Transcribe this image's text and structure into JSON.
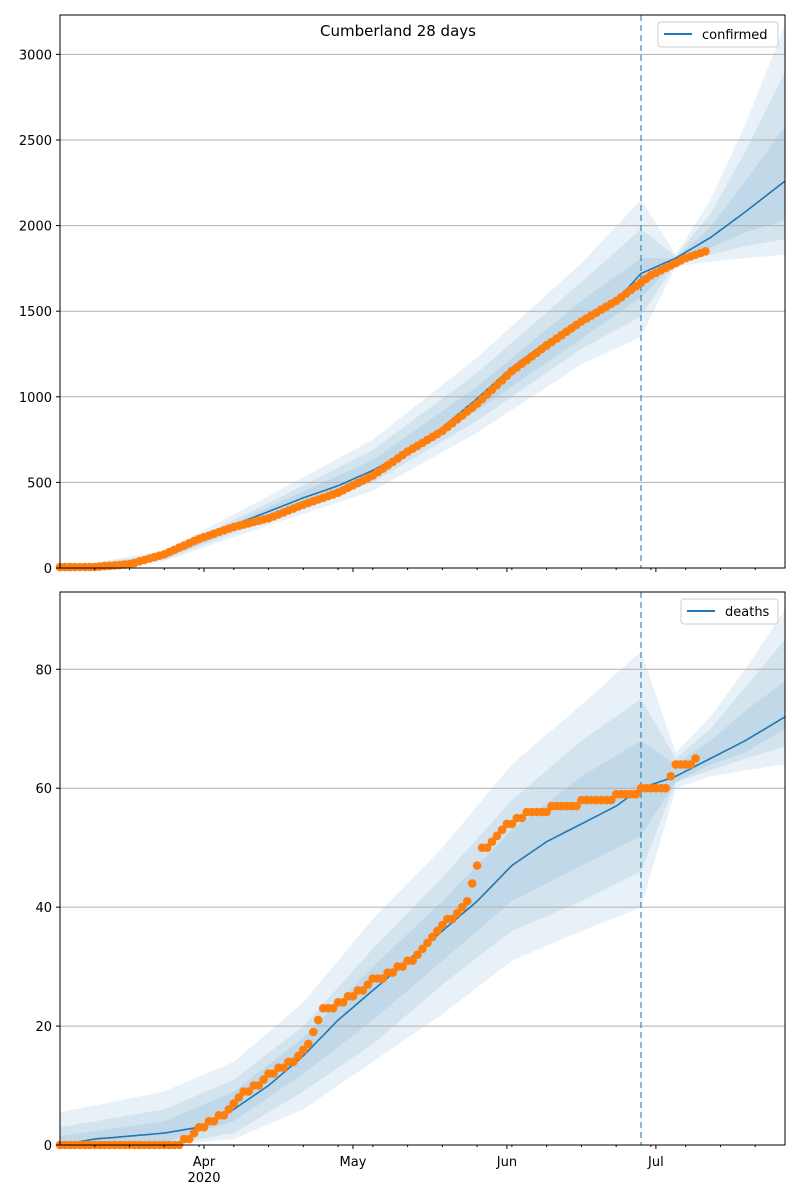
{
  "chart_data": [
    {
      "type": "line",
      "title": "Cumberland 28 days",
      "legend": {
        "entries": [
          "confirmed"
        ],
        "position": "top-right"
      },
      "x_axis": {
        "type": "date",
        "range": [
          "2020-03-03",
          "2020-07-27"
        ]
      },
      "ylim": [
        0,
        3230
      ],
      "yticks": [
        0,
        500,
        1000,
        1500,
        2000,
        2500,
        3000
      ],
      "grid": "y",
      "forecast_start": "2020-06-28",
      "series": [
        {
          "name": "confirmed",
          "role": "model",
          "points": [
            [
              "2020-03-03",
              0
            ],
            [
              "2020-03-10",
              1
            ],
            [
              "2020-03-17",
              10
            ],
            [
              "2020-03-24",
              65
            ],
            [
              "2020-03-31",
              170
            ],
            [
              "2020-04-07",
              250
            ],
            [
              "2020-04-14",
              330
            ],
            [
              "2020-04-21",
              410
            ],
            [
              "2020-04-28",
              480
            ],
            [
              "2020-05-05",
              570
            ],
            [
              "2020-05-12",
              680
            ],
            [
              "2020-05-19",
              820
            ],
            [
              "2020-05-26",
              990
            ],
            [
              "2020-06-02",
              1170
            ],
            [
              "2020-06-09",
              1320
            ],
            [
              "2020-06-16",
              1440
            ],
            [
              "2020-06-23",
              1560
            ],
            [
              "2020-06-28",
              1720
            ],
            [
              "2020-07-05",
              1810
            ],
            [
              "2020-07-12",
              1930
            ],
            [
              "2020-07-19",
              2080
            ],
            [
              "2020-07-27",
              2260
            ]
          ]
        },
        {
          "role": "observed",
          "points": [
            [
              "2020-03-03",
              5
            ],
            [
              "2020-03-10",
              6
            ],
            [
              "2020-03-17",
              22
            ],
            [
              "2020-03-24",
              80
            ],
            [
              "2020-03-31",
              170
            ],
            [
              "2020-04-07",
              240
            ],
            [
              "2020-04-14",
              290
            ],
            [
              "2020-04-21",
              370
            ],
            [
              "2020-04-28",
              440
            ],
            [
              "2020-05-05",
              540
            ],
            [
              "2020-05-12",
              680
            ],
            [
              "2020-05-19",
              800
            ],
            [
              "2020-05-26",
              960
            ],
            [
              "2020-06-02",
              1150
            ],
            [
              "2020-06-09",
              1300
            ],
            [
              "2020-06-16",
              1440
            ],
            [
              "2020-06-23",
              1560
            ],
            [
              "2020-06-30",
              1710
            ],
            [
              "2020-07-07",
              1810
            ],
            [
              "2020-07-11",
              1850
            ]
          ]
        }
      ],
      "bands": [
        {
          "upper": [
            [
              "2020-03-03",
              0
            ],
            [
              "2020-03-24",
              100
            ],
            [
              "2020-04-14",
              420
            ],
            [
              "2020-05-05",
              750
            ],
            [
              "2020-05-26",
              1230
            ],
            [
              "2020-06-16",
              1780
            ],
            [
              "2020-06-28",
              2150
            ],
            [
              "2020-07-05",
              1830
            ],
            [
              "2020-07-12",
              2150
            ],
            [
              "2020-07-19",
              2590
            ],
            [
              "2020-07-27",
              3170
            ]
          ],
          "lower": [
            [
              "2020-03-03",
              0
            ],
            [
              "2020-03-24",
              40
            ],
            [
              "2020-04-14",
              250
            ],
            [
              "2020-05-05",
              450
            ],
            [
              "2020-05-26",
              790
            ],
            [
              "2020-06-16",
              1190
            ],
            [
              "2020-06-28",
              1350
            ],
            [
              "2020-07-05",
              1760
            ],
            [
              "2020-07-12",
              1790
            ],
            [
              "2020-07-19",
              1810
            ],
            [
              "2020-07-27",
              1830
            ]
          ]
        },
        {
          "upper": [
            [
              "2020-03-03",
              0
            ],
            [
              "2020-03-24",
              85
            ],
            [
              "2020-04-14",
              380
            ],
            [
              "2020-05-05",
              690
            ],
            [
              "2020-05-26",
              1140
            ],
            [
              "2020-06-16",
              1670
            ],
            [
              "2020-06-28",
              1980
            ],
            [
              "2020-07-05",
              1820
            ],
            [
              "2020-07-12",
              2070
            ],
            [
              "2020-07-19",
              2430
            ],
            [
              "2020-07-27",
              2900
            ]
          ],
          "lower": [
            [
              "2020-03-03",
              0
            ],
            [
              "2020-03-24",
              48
            ],
            [
              "2020-04-14",
              280
            ],
            [
              "2020-05-05",
              500
            ],
            [
              "2020-05-26",
              860
            ],
            [
              "2020-06-16",
              1280
            ],
            [
              "2020-06-28",
              1470
            ],
            [
              "2020-07-05",
              1780
            ],
            [
              "2020-07-12",
              1830
            ],
            [
              "2020-07-19",
              1880
            ],
            [
              "2020-07-27",
              1920
            ]
          ]
        },
        {
          "upper": [
            [
              "2020-03-03",
              0
            ],
            [
              "2020-03-24",
              72
            ],
            [
              "2020-04-14",
              355
            ],
            [
              "2020-05-05",
              630
            ],
            [
              "2020-05-26",
              1060
            ],
            [
              "2020-06-16",
              1560
            ],
            [
              "2020-06-28",
              1810
            ],
            [
              "2020-07-05",
              1810
            ],
            [
              "2020-07-12",
              1990
            ],
            [
              "2020-07-19",
              2260
            ],
            [
              "2020-07-27",
              2580
            ]
          ],
          "lower": [
            [
              "2020-03-03",
              0
            ],
            [
              "2020-03-24",
              56
            ],
            [
              "2020-04-14",
              305
            ],
            [
              "2020-05-05",
              540
            ],
            [
              "2020-05-26",
              920
            ],
            [
              "2020-06-16",
              1340
            ],
            [
              "2020-06-28",
              1580
            ],
            [
              "2020-07-05",
              1790
            ],
            [
              "2020-07-12",
              1870
            ],
            [
              "2020-07-19",
              1960
            ],
            [
              "2020-07-27",
              2030
            ]
          ]
        }
      ]
    },
    {
      "type": "line",
      "legend": {
        "entries": [
          "deaths"
        ],
        "position": "top-right"
      },
      "x_axis": {
        "type": "date",
        "range": [
          "2020-03-03",
          "2020-07-27"
        ],
        "tick_labels": [
          "Apr\n2020",
          "May",
          "Jun",
          "Jul"
        ]
      },
      "ylim": [
        0,
        93
      ],
      "yticks": [
        0,
        20,
        40,
        60,
        80
      ],
      "grid": "y",
      "forecast_start": "2020-06-28",
      "series": [
        {
          "name": "deaths",
          "role": "model",
          "points": [
            [
              "2020-03-03",
              0
            ],
            [
              "2020-03-10",
              1
            ],
            [
              "2020-03-24",
              2
            ],
            [
              "2020-03-31",
              3
            ],
            [
              "2020-04-07",
              6
            ],
            [
              "2020-04-14",
              10
            ],
            [
              "2020-04-21",
              15
            ],
            [
              "2020-04-28",
              21
            ],
            [
              "2020-05-05",
              26
            ],
            [
              "2020-05-12",
              31
            ],
            [
              "2020-05-19",
              36
            ],
            [
              "2020-05-26",
              41
            ],
            [
              "2020-06-02",
              47
            ],
            [
              "2020-06-09",
              51
            ],
            [
              "2020-06-16",
              54
            ],
            [
              "2020-06-23",
              57
            ],
            [
              "2020-06-28",
              60
            ],
            [
              "2020-07-05",
              62
            ],
            [
              "2020-07-12",
              65
            ],
            [
              "2020-07-19",
              68
            ],
            [
              "2020-07-27",
              72
            ]
          ]
        },
        {
          "role": "observed",
          "points": [
            [
              "2020-03-03",
              0
            ],
            [
              "2020-03-10",
              0
            ],
            [
              "2020-03-17",
              0
            ],
            [
              "2020-03-24",
              0
            ],
            [
              "2020-03-28",
              1
            ],
            [
              "2020-03-31",
              3
            ],
            [
              "2020-04-04",
              5
            ],
            [
              "2020-04-09",
              9
            ],
            [
              "2020-04-14",
              12
            ],
            [
              "2020-04-21",
              16
            ],
            [
              "2020-04-25",
              23
            ],
            [
              "2020-04-30",
              25
            ],
            [
              "2020-05-05",
              28
            ],
            [
              "2020-05-10",
              30
            ],
            [
              "2020-05-15",
              33
            ],
            [
              "2020-05-20",
              38
            ],
            [
              "2020-05-24",
              41
            ],
            [
              "2020-05-27",
              50
            ],
            [
              "2020-06-01",
              54
            ],
            [
              "2020-06-05",
              56
            ],
            [
              "2020-06-10",
              57
            ],
            [
              "2020-06-16",
              58
            ],
            [
              "2020-06-23",
              59
            ],
            [
              "2020-06-28",
              60
            ],
            [
              "2020-07-03",
              60
            ],
            [
              "2020-07-05",
              64
            ],
            [
              "2020-07-09",
              65
            ]
          ]
        }
      ],
      "bands": [
        {
          "upper": [
            [
              "2020-03-03",
              5.5
            ],
            [
              "2020-03-24",
              9
            ],
            [
              "2020-04-07",
              14
            ],
            [
              "2020-04-21",
              24
            ],
            [
              "2020-05-05",
              38
            ],
            [
              "2020-05-19",
              50
            ],
            [
              "2020-06-02",
              64
            ],
            [
              "2020-06-16",
              74
            ],
            [
              "2020-06-28",
              83
            ],
            [
              "2020-07-05",
              66
            ],
            [
              "2020-07-12",
              72
            ],
            [
              "2020-07-19",
              80
            ],
            [
              "2020-07-27",
              90
            ]
          ],
          "lower": [
            [
              "2020-03-03",
              0
            ],
            [
              "2020-03-24",
              0
            ],
            [
              "2020-04-07",
              1
            ],
            [
              "2020-04-21",
              6
            ],
            [
              "2020-05-05",
              14
            ],
            [
              "2020-05-19",
              22
            ],
            [
              "2020-06-02",
              31
            ],
            [
              "2020-06-16",
              36
            ],
            [
              "2020-06-28",
              40
            ],
            [
              "2020-07-05",
              60
            ],
            [
              "2020-07-12",
              62
            ],
            [
              "2020-07-19",
              63
            ],
            [
              "2020-07-27",
              64
            ]
          ]
        },
        {
          "upper": [
            [
              "2020-03-03",
              3
            ],
            [
              "2020-03-24",
              6
            ],
            [
              "2020-04-07",
              11
            ],
            [
              "2020-04-21",
              20
            ],
            [
              "2020-05-05",
              33
            ],
            [
              "2020-05-19",
              45
            ],
            [
              "2020-06-02",
              58
            ],
            [
              "2020-06-16",
              68
            ],
            [
              "2020-06-28",
              75
            ],
            [
              "2020-07-05",
              65
            ],
            [
              "2020-07-12",
              70
            ],
            [
              "2020-07-19",
              77
            ],
            [
              "2020-07-27",
              85
            ]
          ],
          "lower": [
            [
              "2020-03-03",
              0
            ],
            [
              "2020-03-24",
              0
            ],
            [
              "2020-04-07",
              2
            ],
            [
              "2020-04-21",
              9
            ],
            [
              "2020-05-05",
              17
            ],
            [
              "2020-05-19",
              27
            ],
            [
              "2020-06-02",
              36
            ],
            [
              "2020-06-16",
              41
            ],
            [
              "2020-06-28",
              46
            ],
            [
              "2020-07-05",
              61
            ],
            [
              "2020-07-12",
              63
            ],
            [
              "2020-07-19",
              65
            ],
            [
              "2020-07-27",
              67
            ]
          ]
        },
        {
          "upper": [
            [
              "2020-03-03",
              1.5
            ],
            [
              "2020-03-24",
              4
            ],
            [
              "2020-04-07",
              9
            ],
            [
              "2020-04-21",
              18
            ],
            [
              "2020-05-05",
              30
            ],
            [
              "2020-05-19",
              41
            ],
            [
              "2020-06-02",
              53
            ],
            [
              "2020-06-16",
              62
            ],
            [
              "2020-06-28",
              68
            ],
            [
              "2020-07-05",
              64
            ],
            [
              "2020-07-12",
              68
            ],
            [
              "2020-07-19",
              73
            ],
            [
              "2020-07-27",
              78
            ]
          ],
          "lower": [
            [
              "2020-03-03",
              0
            ],
            [
              "2020-03-24",
              0.5
            ],
            [
              "2020-04-07",
              4
            ],
            [
              "2020-04-21",
              12
            ],
            [
              "2020-05-05",
              21
            ],
            [
              "2020-05-19",
              31
            ],
            [
              "2020-06-02",
              41
            ],
            [
              "2020-06-16",
              47
            ],
            [
              "2020-06-28",
              52
            ],
            [
              "2020-07-05",
              61
            ],
            [
              "2020-07-12",
              64
            ],
            [
              "2020-07-19",
              66
            ],
            [
              "2020-07-27",
              70
            ]
          ]
        }
      ]
    }
  ],
  "colors": {
    "model_line": "#1f77b4",
    "observed_points": "#ff7f0e",
    "band": "#1f77b4",
    "forecast_line": "#1f77b4",
    "grid": "#b0b0b0"
  }
}
